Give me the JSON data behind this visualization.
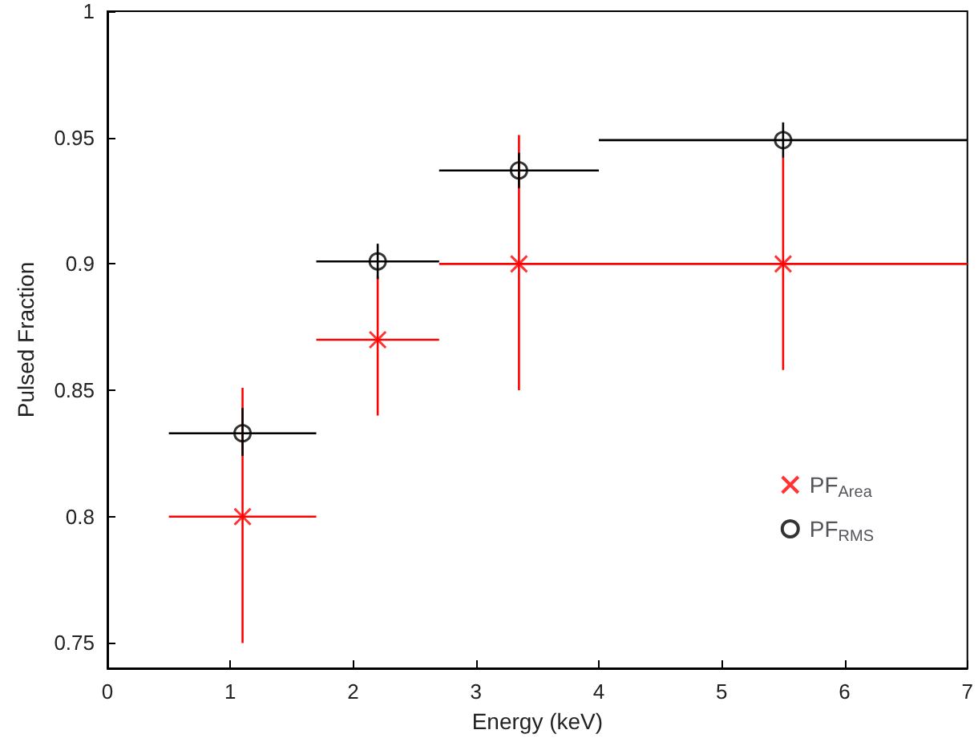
{
  "chart_data": {
    "type": "scatter",
    "xlabel": "Energy (keV)",
    "ylabel": "Pulsed Fraction",
    "xlim": [
      0,
      7
    ],
    "xticks": [
      0,
      1,
      2,
      3,
      4,
      5,
      6,
      7
    ],
    "ylim": [
      0.74,
      1
    ],
    "yticks": [
      0.75,
      0.8,
      0.85,
      0.9,
      0.95,
      1
    ],
    "grid": false,
    "legend": "right",
    "series": [
      {
        "name": "PF$_{Area}$",
        "color": "#ff0000",
        "marker": "cross",
        "x": [
          1.1,
          2.2,
          3.35,
          5.5
        ],
        "values": [
          0.8,
          0.87,
          0.9,
          0.9
        ],
        "errors": [
          [
            0.75,
            0.851
          ],
          [
            0.84,
            0.895
          ],
          [
            0.85,
            0.951
          ],
          [
            0.858,
            0.942
          ]
        ],
        "xerrors": [
          [
            0.5,
            1.7
          ],
          [
            1.7,
            2.7
          ],
          [
            2.7,
            4.0
          ],
          [
            4.0,
            7.0
          ]
        ]
      },
      {
        "name": "PF$_{RMS}$",
        "color": "#000000",
        "marker": "circle",
        "x": [
          1.1,
          2.2,
          3.35,
          5.5
        ],
        "values": [
          0.833,
          0.901,
          0.937,
          0.949
        ],
        "errors": [
          [
            0.824,
            0.843
          ],
          [
            0.894,
            0.908
          ],
          [
            0.93,
            0.944
          ],
          [
            0.942,
            0.956
          ]
        ],
        "xerrors": [
          [
            0.5,
            1.7
          ],
          [
            1.7,
            2.7
          ],
          [
            2.7,
            4.0
          ],
          [
            4.0,
            7.0
          ]
        ]
      }
    ]
  }
}
